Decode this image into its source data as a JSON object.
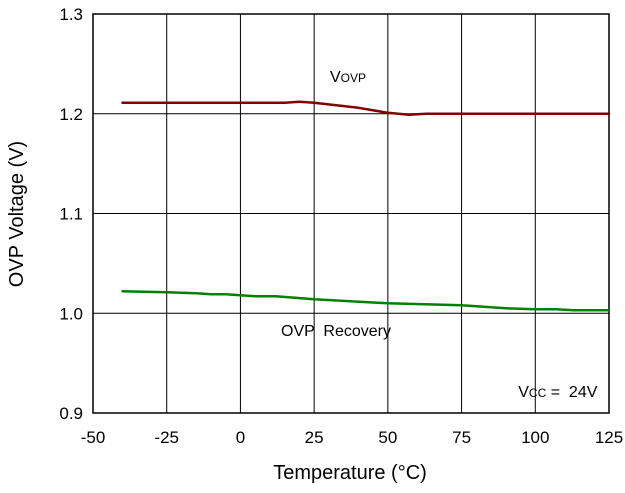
{
  "chart_data": {
    "type": "line",
    "title": "",
    "xlabel": "Temperature (°C)",
    "ylabel": "OVP Voltage (V)",
    "xlim": [
      -50,
      125
    ],
    "ylim": [
      0.9,
      1.3
    ],
    "xticks": [
      -50,
      -25,
      0,
      25,
      50,
      75,
      100,
      125
    ],
    "yticks": [
      0.9,
      1.0,
      1.1,
      1.2,
      1.3
    ],
    "xtick_labels": [
      "-50",
      "-25",
      "0",
      "25",
      "50",
      "75",
      "100",
      "125"
    ],
    "ytick_labels": [
      "0.9",
      "1.0",
      "1.1",
      "1.2",
      "1.3"
    ],
    "grid": true,
    "series": [
      {
        "name": "VOVP",
        "color": "#800000",
        "x": [
          -40,
          -25,
          0,
          10,
          15,
          20,
          25,
          40,
          50,
          57,
          63,
          75,
          100,
          125
        ],
        "y": [
          1.211,
          1.211,
          1.211,
          1.211,
          1.211,
          1.212,
          1.211,
          1.206,
          1.201,
          1.199,
          1.2,
          1.2,
          1.2,
          1.2
        ]
      },
      {
        "name": "OVP Recovery",
        "color": "#008000",
        "x": [
          -40,
          -25,
          -15,
          -10,
          -5,
          0,
          5,
          12,
          25,
          50,
          75,
          90,
          100,
          107,
          113,
          125
        ],
        "y": [
          1.022,
          1.021,
          1.02,
          1.019,
          1.019,
          1.018,
          1.017,
          1.017,
          1.014,
          1.01,
          1.008,
          1.005,
          1.004,
          1.004,
          1.003,
          1.003
        ]
      }
    ],
    "annotations": {
      "vovp": {
        "main": "V",
        "sub": "OVP"
      },
      "recovery": "OVP  Recovery",
      "vcc": {
        "main": "V",
        "sub": "CC",
        "rest": " =  24V"
      }
    }
  }
}
